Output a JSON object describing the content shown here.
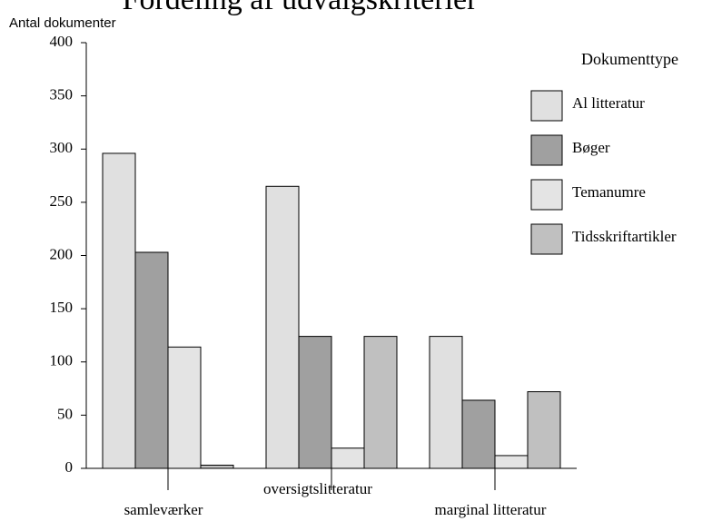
{
  "chart_data": {
    "type": "bar",
    "title": "Fordeling af udvalgskriterier",
    "y_label": "Antal dokumenter",
    "legend_title": "Dokumenttype",
    "legend": "right",
    "categories": [
      "samleværker",
      "oversigtslitteratur",
      "marginal litteratur"
    ],
    "series": [
      {
        "name": "Al litteratur",
        "color": "#e0e0e0",
        "label_color": "#800000",
        "values": [
          296,
          265,
          124
        ]
      },
      {
        "name": "Bøger",
        "color": "#a0a0a0",
        "label_color": "#008000",
        "values": [
          203,
          124,
          64
        ]
      },
      {
        "name": "Temanumre",
        "color": "#e4e4e4",
        "label_color": "#008080",
        "values": [
          114,
          19,
          12
        ]
      },
      {
        "name": "Tidsskriftartikler",
        "color": "#c0c0c0",
        "label_color": "#804000",
        "values": [
          3,
          124,
          72
        ]
      }
    ],
    "ylim": [
      0,
      400
    ],
    "yticks": [
      0,
      50,
      100,
      150,
      200,
      250,
      300,
      350,
      400
    ],
    "grid": false
  }
}
